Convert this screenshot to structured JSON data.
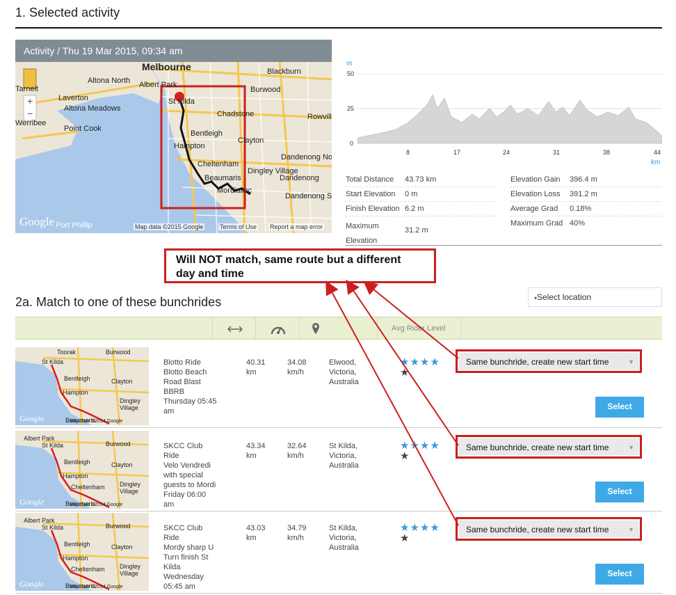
{
  "section1": {
    "title": "1. Selected activity"
  },
  "activity": {
    "header": "Activity / Thu 19 Mar 2015, 09:34 am",
    "map_labels": [
      "Melbourne",
      "Blackburn",
      "Altona North",
      "Albert Park",
      "Burwood",
      "Laverton",
      "Altona Meadows",
      "Point Cook",
      "St Kilda",
      "Chadstone",
      "Bentleigh",
      "Clayton",
      "Hampton",
      "Cheltenham",
      "Dingley Village",
      "Dandenong North",
      "Dandenong",
      "Beaumaris",
      "Mordialloc",
      "Dandenong South",
      "Rowville",
      "Tarneit",
      "Werribee",
      "Port Phillip"
    ],
    "map_attrib": "Map data ©2015 Google",
    "terms": "Terms of Use",
    "report": "Report a map error",
    "google": "Google",
    "zoom_in": "+",
    "zoom_out": "−"
  },
  "profile": {
    "y_unit": "m",
    "x_unit": "km",
    "y_ticks": [
      "50",
      "25",
      "0"
    ],
    "x_ticks": [
      "8",
      "17",
      "24",
      "31",
      "38",
      "44"
    ]
  },
  "stats": [
    {
      "label": "Total Distance",
      "value": "43.73 km"
    },
    {
      "label": "Start Elevation",
      "value": "0 m"
    },
    {
      "label": "Finish Elevation",
      "value": "6.2 m"
    },
    {
      "label": "Maximum Elevation",
      "value": "31.2 m"
    },
    {
      "label": "Elevation Gain",
      "value": "396.4 m"
    },
    {
      "label": "Elevation Loss",
      "value": "391.2 m"
    },
    {
      "label": "Average Grad",
      "value": "0.18%"
    },
    {
      "label": "Maximum Grad",
      "value": "40%"
    }
  ],
  "callout": {
    "line1": "Will NOT match, same route but a different",
    "line2": "day and time"
  },
  "section2": {
    "title": "2a. Match to one of these bunchrides",
    "location_placeholder": "Select location"
  },
  "table": {
    "avg_rider_level": "Avg Rider Level"
  },
  "rides": [
    {
      "name": [
        "Blotto Ride",
        "Blotto Beach",
        "Road Blast",
        "BBRB",
        "Thursday 05:45",
        "am"
      ],
      "distance": [
        "40.31",
        "km"
      ],
      "speed": [
        "34.08",
        "km/h"
      ],
      "location": [
        "Elwood, Victoria,",
        "Australia"
      ],
      "stars_blue": "★★★★",
      "stars_dark": "★",
      "option": "Same bunchride, create new start time",
      "select": "Select",
      "thumb_labels": [
        "Toorak",
        "Burwood",
        "St Kilda",
        "Bentleigh",
        "Clayton",
        "Hampton",
        "Dingley",
        "Village",
        "Beaumaris"
      ],
      "thumb_attrib": "Map data ©2014 Google",
      "thumb_google": "Google"
    },
    {
      "name": [
        "SKCC Club",
        "Ride",
        "Velo Vendredi",
        "with special",
        "guests to Mordi",
        "Friday 06:00",
        "am"
      ],
      "distance": [
        "43.34",
        "km"
      ],
      "speed": [
        "32.64",
        "km/h"
      ],
      "location": [
        "St Kilda,",
        "Victoria,",
        "Australia"
      ],
      "stars_blue": "★★★★",
      "stars_dark": "★",
      "option": "Same bunchride, create new start time",
      "select": "Select",
      "thumb_labels": [
        "Albert Park",
        "Burwood",
        "St Kilda",
        "Bentleigh",
        "Clayton",
        "Hampton",
        "Cheltenham",
        "Dingley",
        "Village",
        "Beaumaris"
      ],
      "thumb_attrib": "Map data ©2014 Google",
      "thumb_google": "Google"
    },
    {
      "name": [
        "SKCC Club",
        "Ride",
        "Mordy sharp U",
        "Turn finish St",
        "Kilda",
        "Wednesday",
        "05:45 am"
      ],
      "distance": [
        "43.03",
        "km"
      ],
      "speed": [
        "34.79",
        "km/h"
      ],
      "location": [
        "St Kilda,",
        "Victoria,",
        "Australia"
      ],
      "stars_blue": "★★★★",
      "stars_dark": "★",
      "option": "Same bunchride, create new start time",
      "select": "Select",
      "thumb_labels": [
        "Albert Park",
        "Burwood",
        "St Kilda",
        "Bentleigh",
        "Clayton",
        "Hampton",
        "Cheltenham",
        "Dingley",
        "Village",
        "Beaumaris"
      ],
      "thumb_attrib": "Map data ©2014 Google",
      "thumb_google": "Google"
    }
  ]
}
